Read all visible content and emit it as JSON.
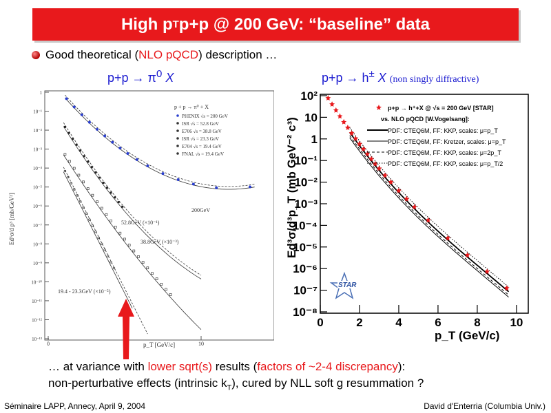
{
  "slide": {
    "title_pre": "High p",
    "title_sub": "T",
    "title_post": " p+p @ 200 GeV: “baseline” data",
    "line1_a": "Good theoretical (",
    "line1_red": "NLO pQCD",
    "line1_b": ") description …",
    "left_subtitle": "p+p → π",
    "left_sup": "0",
    "left_X": " X",
    "right_subtitle": "p+p → h",
    "right_sup": "±",
    "right_X": " X",
    "right_note": "(non singly diffractive)",
    "bottom_a": "… at variance with ",
    "bottom_red1": "lower sqrt(s)",
    "bottom_b": " results (",
    "bottom_red2": "factors of ~2-4 discrepancy",
    "bottom_c": "):",
    "bottom2_a": "non-perturbative effects (intrinsic k",
    "bottom2_sub": "T",
    "bottom2_b": "), cured by NLL soft g resummation ?",
    "footer_left": "Séminaire LAPP, Annecy, April 9, 2004",
    "footer_right": "David d'Enterria (Columbia Univ.)"
  },
  "left_plot": {
    "ylabel": "Ed³σ/d p³ [mb/GeV²]",
    "xlabel": "p_T [GeV/c]",
    "yticks": [
      "1",
      "10⁻¹",
      "10⁻²",
      "10⁻³",
      "10⁻⁴",
      "10⁻⁵",
      "10⁻⁶",
      "10⁻⁷",
      "10⁻⁸",
      "10⁻⁹",
      "10⁻¹⁰",
      "10⁻¹¹",
      "10⁻¹²",
      "10⁻¹³"
    ],
    "xticks": [
      "0",
      "5",
      "10",
      "15"
    ],
    "legend_title": "p + p → π⁰ + X",
    "legend": [
      "PHENIX  √s = 200 GeV",
      "ISR     √s = 52.8 GeV",
      "E706    √s = 38.8 GeV",
      "ISR     √s = 23.3 GeV",
      "E704    √s = 19.4 GeV",
      "FNAL    √s = 19.4 GeV"
    ],
    "labels": [
      "200GeV",
      "52.8GeV (×10⁻¹)",
      "38.8GeV (×10⁻³)",
      "19.4 - 23.3GeV (×10⁻⁵)"
    ]
  },
  "right_plot": {
    "ylabel": "Ed³σ/d³p_T (mb GeV⁻² c³)",
    "xlabel": "p_T (GeV/c)",
    "yticks": [
      "10²",
      "10",
      "1",
      "10⁻¹",
      "10⁻²",
      "10⁻³",
      "10⁻⁴",
      "10⁻⁵",
      "10⁻⁶",
      "10⁻⁷",
      "10⁻⁸"
    ],
    "xticks": [
      "0",
      "2",
      "4",
      "6",
      "8",
      "10"
    ],
    "legend": [
      "p+p → h⁺+X @ √s = 200 GeV [STAR]",
      "vs. NLO pQCD [W.Vogelsang]:",
      "PDF: CTEQ6M, FF: KKP, scales: μ=p_T",
      "PDF: CTEQ6M, FF: Kretzer, scales: μ=p_T",
      "PDF: CTEQ6M, FF: KKP, scales: μ=2p_T",
      "PDF: CTEQ6M, FF: KKP, scales: μ=p_T/2"
    ],
    "logo": "STAR"
  }
}
